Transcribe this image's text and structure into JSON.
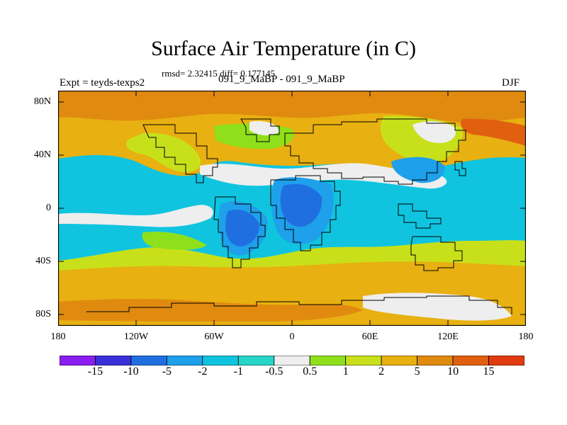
{
  "title": "Surface Air Temperature (in C)",
  "stats": "rmsd= 2.32415 diff= 0.177145",
  "experiment": "Expt = teyds-texps2",
  "cases": "091_9_MaBP - 091_9_MaBP",
  "season": "DJF",
  "lat_labels": [
    "80N",
    "40N",
    "0",
    "40S",
    "80S"
  ],
  "lon_labels": [
    "180",
    "120W",
    "60W",
    "0",
    "60E",
    "120E",
    "180"
  ],
  "colorbar": {
    "labels": [
      "-15",
      "-10",
      "-5",
      "-2",
      "-1",
      "-0.5",
      "0.5",
      "1",
      "2",
      "5",
      "10",
      "15"
    ],
    "colors": [
      "#8a1df0",
      "#3a2fd8",
      "#1f6fe0",
      "#1ea0ea",
      "#10c4e0",
      "#28d6c8",
      "#eeeeee",
      "#8fe01a",
      "#c8e01a",
      "#e8b010",
      "#e08a10",
      "#e06010",
      "#e03a10"
    ]
  },
  "field_colors": {
    "polar_warm": "#e08a10",
    "warm": "#e8b010",
    "mild": "#c8e01a",
    "slight": "#8fe01a",
    "neutral": "#eeeeee",
    "cool": "#10c4e0",
    "cold": "#1ea0ea",
    "colder": "#1f6fe0",
    "hot": "#e06010"
  }
}
